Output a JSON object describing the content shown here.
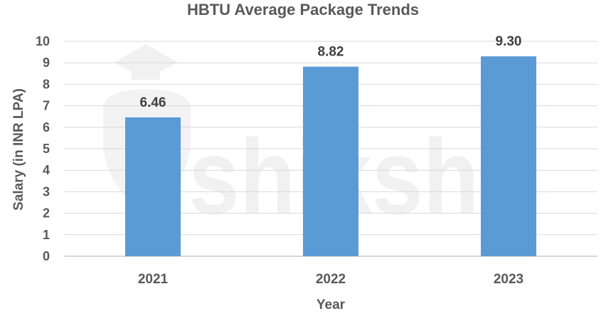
{
  "chart_data": {
    "type": "bar",
    "title": "HBTU Average Package Trends",
    "xlabel": "Year",
    "ylabel": "Salary (in INR LPA)",
    "categories": [
      "2021",
      "2022",
      "2023"
    ],
    "values": [
      6.46,
      8.82,
      9.3
    ],
    "data_labels": [
      "6.46",
      "8.82",
      "9.30"
    ],
    "ylim": [
      0,
      10
    ],
    "yticks": [
      "0",
      "1",
      "2",
      "3",
      "4",
      "5",
      "6",
      "7",
      "8",
      "9",
      "10"
    ],
    "bar_color": "#5b9bd5",
    "grid": true,
    "legend": "none"
  },
  "watermark": {
    "text": "shiksha"
  }
}
